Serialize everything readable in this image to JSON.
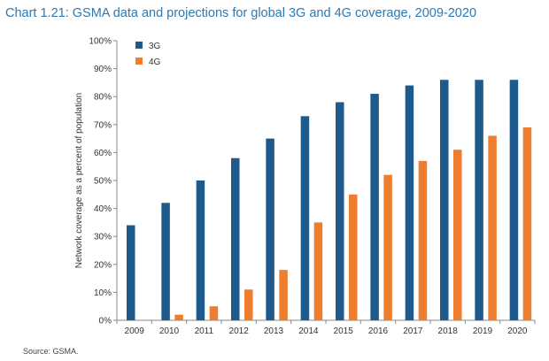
{
  "title": "Chart 1.21: GSMA data and projections for global 3G and 4G coverage, 2009-2020",
  "source": "Source: GSMA.",
  "chart_data": {
    "type": "bar",
    "title": "Chart 1.21: GSMA data and projections for global 3G and 4G coverage, 2009-2020",
    "xlabel": "",
    "ylabel": "Network coverage as a percent of population",
    "ylim": [
      0,
      100
    ],
    "yticks": [
      0,
      10,
      20,
      30,
      40,
      50,
      60,
      70,
      80,
      90,
      100
    ],
    "ytick_labels": [
      "0%",
      "10%",
      "20%",
      "30%",
      "40%",
      "50%",
      "60%",
      "70%",
      "80%",
      "90%",
      "100%"
    ],
    "categories": [
      "2009",
      "2010",
      "2011",
      "2012",
      "2013",
      "2014",
      "2015",
      "2016",
      "2017",
      "2018",
      "2019",
      "2020"
    ],
    "legend_position": "top-left",
    "series": [
      {
        "name": "3G",
        "color": "#1f5a8c",
        "values": [
          34,
          42,
          50,
          58,
          65,
          73,
          78,
          81,
          84,
          86,
          86,
          86
        ]
      },
      {
        "name": "4G",
        "color": "#ef7d2e",
        "values": [
          0,
          2,
          5,
          11,
          18,
          35,
          45,
          52,
          57,
          61,
          66,
          69
        ]
      }
    ]
  }
}
